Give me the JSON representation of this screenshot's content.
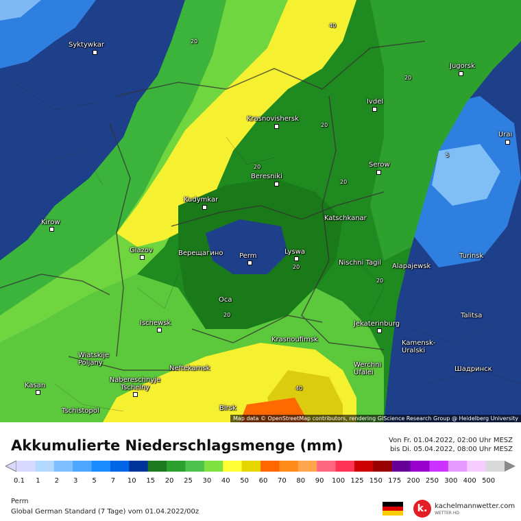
{
  "map": {
    "credit": "Map data © OpenStreetMap contributors, rendering GIScience Research Group @ Heidelberg University",
    "cities": [
      {
        "name": "Syktywkar"
      },
      {
        "name": "Jugorsk"
      },
      {
        "name": "Ivdel"
      },
      {
        "name": "Krasnovishersk"
      },
      {
        "name": "Urai"
      },
      {
        "name": "Beresniki"
      },
      {
        "name": "Serow"
      },
      {
        "name": "Kudymkar"
      },
      {
        "name": "Katschkanar"
      },
      {
        "name": "Kirow"
      },
      {
        "name": "Glazov"
      },
      {
        "name": "Верещагино"
      },
      {
        "name": "Perm"
      },
      {
        "name": "Lyswa"
      },
      {
        "name": "Nischni Tagil"
      },
      {
        "name": "Alapajewsk"
      },
      {
        "name": "Turinsk"
      },
      {
        "name": "Oca"
      },
      {
        "name": "Talitsa"
      },
      {
        "name": "Ischewsk"
      },
      {
        "name": "Jekaterinburg"
      },
      {
        "name": "Krasnoufimsk"
      },
      {
        "name": "Kamensk-Uralski"
      },
      {
        "name": "Wiatskije Poljany"
      },
      {
        "name": "Neftekamsk"
      },
      {
        "name": "Werchni Ufalei"
      },
      {
        "name": "Шадринск"
      },
      {
        "name": "Nabereschnyje Tschelny"
      },
      {
        "name": "Kasan"
      },
      {
        "name": "Tschistopol"
      },
      {
        "name": "Birsk"
      }
    ],
    "contour_labels": [
      "40",
      "20",
      "20",
      "20",
      "20",
      "20",
      "5",
      "20",
      "20",
      "20",
      "40"
    ]
  },
  "legend": {
    "title": "Akkumulierte Niederschlagsmenge (mm)",
    "date_from": "Von Fr. 01.04.2022, 02:00 Uhr MESZ",
    "date_to": "bis Di. 05.04.2022, 08:00 Uhr MESZ",
    "scale_labels": [
      "0.1",
      "1",
      "2",
      "3",
      "5",
      "7",
      "10",
      "15",
      "20",
      "25",
      "30",
      "40",
      "50",
      "60",
      "70",
      "80",
      "90",
      "100",
      "125",
      "150",
      "175",
      "200",
      "250",
      "300",
      "400",
      "500"
    ],
    "scale_colors": [
      "#d9d9ff",
      "#b3d9ff",
      "#80bfff",
      "#4da6ff",
      "#1a8cff",
      "#0066e6",
      "#003399",
      "#1e7a1e",
      "#2ea02e",
      "#4cc24c",
      "#80e040",
      "#ffff33",
      "#e6d600",
      "#ff6600",
      "#ff8c1a",
      "#ffa64d",
      "#ff6680",
      "#ff3355",
      "#cc0000",
      "#990000",
      "#660099",
      "#9900cc",
      "#cc33ff",
      "#e699ff",
      "#f5ccff",
      "#d9d9d9"
    ],
    "location": "Perm",
    "model": "Global German Standard (7 Tage) vom  01.04.2022/00z",
    "brand": "kachelmannwetter.com",
    "brand_sub": "WETTER HD",
    "logo_letter": "k."
  }
}
